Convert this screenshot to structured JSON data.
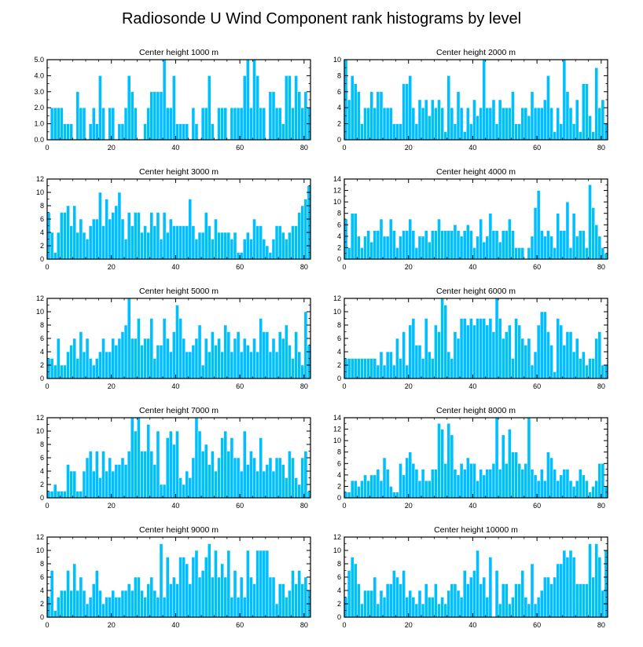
{
  "page": {
    "title": "Radiosonde U Wind Component rank histograms by level"
  },
  "colors": {
    "bar": "#00BFFF",
    "bar_edge": "#ffffff",
    "frame": "#000000"
  },
  "chart_data": [
    {
      "type": "bar",
      "title": "Center height 1000 m",
      "xlim": [
        0,
        82
      ],
      "ylim": [
        0,
        5
      ],
      "xticks": [
        0,
        20,
        40,
        60,
        80
      ],
      "xtick_labels": [
        "0",
        "20",
        "40",
        "60",
        "80"
      ],
      "yticks": [
        0,
        1,
        2,
        3,
        4,
        5
      ],
      "ytick_labels": [
        "0.0",
        "1.0",
        "2.0",
        "3.0",
        "4.0",
        "5.0"
      ],
      "values": [
        0,
        2,
        2,
        2,
        2,
        1,
        1,
        1,
        0,
        3,
        2,
        2,
        0,
        1,
        2,
        1,
        4,
        2,
        0,
        2,
        2,
        0,
        1,
        1,
        2,
        4,
        3,
        2,
        0,
        0,
        1,
        2,
        3,
        3,
        3,
        3,
        5,
        2,
        2,
        4,
        1,
        1,
        1,
        1,
        0,
        2,
        1,
        0,
        2,
        2,
        4,
        1,
        0,
        2,
        2,
        2,
        0,
        2,
        2,
        2,
        2,
        4,
        5,
        2,
        5,
        4,
        2,
        2,
        0,
        3,
        3,
        2,
        2,
        1,
        4,
        4,
        2,
        4,
        3,
        2,
        3,
        2
      ]
    },
    {
      "type": "bar",
      "title": "Center height 2000 m",
      "xlim": [
        0,
        82
      ],
      "ylim": [
        0,
        10
      ],
      "xticks": [
        0,
        20,
        40,
        60,
        80
      ],
      "xtick_labels": [
        "0",
        "20",
        "40",
        "60",
        "80"
      ],
      "yticks": [
        0,
        2,
        4,
        6,
        8,
        10
      ],
      "ytick_labels": [
        "0",
        "2",
        "4",
        "6",
        "8",
        "10"
      ],
      "values": [
        10,
        5,
        8,
        7,
        6,
        2,
        4,
        4,
        6,
        4,
        6,
        6,
        4,
        4,
        4,
        2,
        2,
        2,
        7,
        7,
        8,
        4,
        2,
        5,
        4,
        5,
        3,
        5,
        4,
        5,
        4,
        1,
        8,
        4,
        2,
        6,
        4,
        1,
        4,
        2,
        5,
        3,
        4,
        10,
        4,
        4,
        5,
        2,
        5,
        4,
        4,
        4,
        6,
        2,
        2,
        4,
        4,
        3,
        6,
        4,
        4,
        4,
        5,
        8,
        4,
        1,
        4,
        2,
        10,
        6,
        4,
        2,
        5,
        1,
        7,
        7,
        3,
        1,
        9,
        4,
        5,
        2
      ]
    },
    {
      "type": "bar",
      "title": "Center height 3000 m",
      "xlim": [
        0,
        82
      ],
      "ylim": [
        0,
        12
      ],
      "xticks": [
        0,
        20,
        40,
        60,
        80
      ],
      "xtick_labels": [
        "0",
        "20",
        "40",
        "60",
        "80"
      ],
      "yticks": [
        0,
        2,
        4,
        6,
        8,
        10,
        12
      ],
      "ytick_labels": [
        "0",
        "2",
        "4",
        "6",
        "8",
        "10",
        "12"
      ],
      "values": [
        7,
        4,
        1,
        4,
        7,
        7,
        8,
        5,
        8,
        4,
        6,
        4,
        3,
        5,
        6,
        6,
        10,
        5,
        9,
        6,
        7,
        8,
        10,
        6,
        3,
        7,
        5,
        7,
        7,
        4,
        5,
        4,
        7,
        5,
        7,
        3,
        7,
        4,
        6,
        5,
        5,
        5,
        5,
        5,
        9,
        5,
        3,
        4,
        4,
        7,
        5,
        3,
        6,
        4,
        4,
        4,
        4,
        3,
        4,
        1,
        1,
        3,
        4,
        3,
        6,
        5,
        5,
        3,
        2,
        1,
        3,
        5,
        5,
        4,
        3,
        4,
        5,
        5,
        7,
        8,
        9,
        11
      ]
    },
    {
      "type": "bar",
      "title": "Center height 4000 m",
      "xlim": [
        0,
        82
      ],
      "ylim": [
        0,
        14
      ],
      "xticks": [
        0,
        20,
        40,
        60,
        80
      ],
      "xtick_labels": [
        "0",
        "20",
        "40",
        "60",
        "80"
      ],
      "yticks": [
        0,
        2,
        4,
        6,
        8,
        10,
        12,
        14
      ],
      "ytick_labels": [
        "0",
        "2",
        "4",
        "6",
        "8",
        "10",
        "12",
        "14"
      ],
      "values": [
        7,
        2,
        8,
        8,
        4,
        2,
        4,
        5,
        3,
        5,
        5,
        7,
        4,
        4,
        7,
        5,
        2,
        4,
        5,
        5,
        7,
        5,
        2,
        4,
        4,
        5,
        3,
        5,
        5,
        7,
        5,
        5,
        5,
        5,
        6,
        5,
        4,
        5,
        6,
        5,
        2,
        4,
        7,
        3,
        4,
        8,
        5,
        5,
        3,
        5,
        5,
        7,
        5,
        2,
        2,
        2,
        0,
        2,
        4,
        9,
        12,
        5,
        4,
        5,
        4,
        2,
        8,
        5,
        5,
        10,
        2,
        8,
        4,
        5,
        5,
        2,
        13,
        9,
        6,
        4,
        2,
        1
      ]
    },
    {
      "type": "bar",
      "title": "Center height 5000 m",
      "xlim": [
        0,
        82
      ],
      "ylim": [
        0,
        12
      ],
      "xticks": [
        0,
        20,
        40,
        60,
        80
      ],
      "xtick_labels": [
        "0",
        "20",
        "40",
        "60",
        "80"
      ],
      "yticks": [
        0,
        2,
        4,
        6,
        8,
        10,
        12
      ],
      "ytick_labels": [
        "0",
        "2",
        "4",
        "6",
        "8",
        "10",
        "12"
      ],
      "values": [
        3,
        3,
        2,
        6,
        2,
        2,
        4,
        5,
        6,
        3,
        7,
        4,
        6,
        3,
        2,
        3,
        4,
        6,
        4,
        4,
        6,
        5,
        6,
        7,
        8,
        12,
        6,
        6,
        9,
        5,
        6,
        6,
        9,
        3,
        5,
        5,
        9,
        6,
        4,
        7,
        11,
        9,
        6,
        4,
        4,
        5,
        6,
        8,
        2,
        6,
        4,
        7,
        5,
        6,
        4,
        8,
        7,
        4,
        6,
        7,
        4,
        6,
        5,
        4,
        6,
        4,
        9,
        7,
        7,
        4,
        6,
        4,
        7,
        6,
        8,
        5,
        3,
        7,
        4,
        2,
        10,
        5
      ]
    },
    {
      "type": "bar",
      "title": "Center height 6000 m",
      "xlim": [
        0,
        82
      ],
      "ylim": [
        0,
        12
      ],
      "xticks": [
        0,
        20,
        40,
        60,
        80
      ],
      "xtick_labels": [
        "0",
        "20",
        "40",
        "60",
        "80"
      ],
      "yticks": [
        0,
        2,
        4,
        6,
        8,
        10,
        12
      ],
      "ytick_labels": [
        "0",
        "2",
        "4",
        "6",
        "8",
        "10",
        "12"
      ],
      "values": [
        3,
        3,
        3,
        3,
        3,
        3,
        3,
        3,
        3,
        3,
        2,
        4,
        2,
        4,
        4,
        2,
        6,
        3,
        7,
        2,
        8,
        9,
        5,
        5,
        3,
        9,
        4,
        3,
        8,
        7,
        12,
        11,
        4,
        3,
        7,
        6,
        9,
        9,
        8,
        9,
        8,
        9,
        9,
        9,
        8,
        9,
        7,
        12,
        9,
        6,
        7,
        8,
        3,
        9,
        8,
        6,
        5,
        6,
        2,
        4,
        8,
        10,
        10,
        7,
        5,
        1,
        9,
        8,
        5,
        7,
        7,
        4,
        6,
        3,
        4,
        2,
        3,
        3,
        6,
        7,
        2,
        2
      ]
    },
    {
      "type": "bar",
      "title": "Center height 7000 m",
      "xlim": [
        0,
        82
      ],
      "ylim": [
        0,
        12
      ],
      "xticks": [
        0,
        20,
        40,
        60,
        80
      ],
      "xtick_labels": [
        "0",
        "20",
        "40",
        "60",
        "80"
      ],
      "yticks": [
        0,
        2,
        4,
        6,
        8,
        10,
        12
      ],
      "ytick_labels": [
        "0",
        "2",
        "4",
        "6",
        "8",
        "10",
        "12"
      ],
      "values": [
        1,
        1,
        2,
        1,
        1,
        1,
        5,
        4,
        4,
        1,
        1,
        4,
        6,
        7,
        4,
        7,
        3,
        7,
        4,
        6,
        4,
        5,
        5,
        6,
        5,
        7,
        12,
        10,
        12,
        7,
        7,
        11,
        7,
        5,
        10,
        2,
        2,
        9,
        10,
        8,
        10,
        3,
        2,
        4,
        3,
        6,
        12,
        10,
        7,
        8,
        5,
        7,
        4,
        6,
        9,
        10,
        7,
        9,
        6,
        6,
        4,
        10,
        5,
        7,
        6,
        4,
        9,
        4,
        5,
        6,
        4,
        6,
        6,
        5,
        3,
        7,
        6,
        3,
        2,
        6,
        7,
        1
      ]
    },
    {
      "type": "bar",
      "title": "Center height 8000 m",
      "xlim": [
        0,
        82
      ],
      "ylim": [
        0,
        14
      ],
      "xticks": [
        0,
        20,
        40,
        60,
        80
      ],
      "xtick_labels": [
        "0",
        "20",
        "40",
        "60",
        "80"
      ],
      "yticks": [
        0,
        2,
        4,
        6,
        8,
        10,
        12,
        14
      ],
      "ytick_labels": [
        "0",
        "2",
        "4",
        "6",
        "8",
        "10",
        "12",
        "14"
      ],
      "values": [
        1,
        1,
        3,
        3,
        2,
        3,
        4,
        3,
        4,
        4,
        5,
        3,
        7,
        5,
        2,
        1,
        1,
        6,
        4,
        7,
        8,
        6,
        5,
        3,
        5,
        3,
        3,
        5,
        5,
        13,
        12,
        6,
        13,
        11,
        5,
        4,
        6,
        5,
        7,
        6,
        6,
        3,
        5,
        4,
        5,
        5,
        6,
        14,
        5,
        11,
        6,
        12,
        8,
        8,
        6,
        5,
        6,
        14,
        5,
        4,
        3,
        5,
        3,
        8,
        7,
        5,
        3,
        4,
        5,
        5,
        3,
        2,
        3,
        5,
        4,
        3,
        1,
        2,
        3,
        6,
        6,
        2
      ]
    },
    {
      "type": "bar",
      "title": "Center height 9000 m",
      "xlim": [
        0,
        82
      ],
      "ylim": [
        0,
        12
      ],
      "xticks": [
        0,
        20,
        40,
        60,
        80
      ],
      "xtick_labels": [
        "0",
        "20",
        "40",
        "60",
        "80"
      ],
      "yticks": [
        0,
        2,
        4,
        6,
        8,
        10,
        12
      ],
      "ytick_labels": [
        "0",
        "2",
        "4",
        "6",
        "8",
        "10",
        "12"
      ],
      "values": [
        3,
        7,
        1,
        3,
        4,
        4,
        7,
        4,
        8,
        4,
        6,
        4,
        2,
        3,
        5,
        7,
        4,
        2,
        3,
        3,
        4,
        3,
        3,
        4,
        4,
        5,
        4,
        6,
        6,
        4,
        3,
        5,
        6,
        4,
        3,
        11,
        3,
        9,
        5,
        6,
        5,
        9,
        9,
        8,
        5,
        9,
        10,
        6,
        7,
        9,
        11,
        6,
        10,
        6,
        8,
        6,
        10,
        3,
        7,
        3,
        6,
        3,
        10,
        6,
        5,
        10,
        10,
        10,
        10,
        6,
        6,
        2,
        5,
        5,
        3,
        4,
        7,
        5,
        7,
        5,
        6,
        4
      ]
    },
    {
      "type": "bar",
      "title": "Center height 10000 m",
      "xlim": [
        0,
        82
      ],
      "ylim": [
        0,
        12
      ],
      "xticks": [
        0,
        20,
        40,
        60,
        80
      ],
      "xtick_labels": [
        "0",
        "20",
        "40",
        "60",
        "80"
      ],
      "yticks": [
        0,
        2,
        4,
        6,
        8,
        10,
        12
      ],
      "ytick_labels": [
        "0",
        "2",
        "4",
        "6",
        "8",
        "10",
        "12"
      ],
      "values": [
        3,
        7,
        9,
        8,
        5,
        2,
        4,
        4,
        4,
        6,
        2,
        4,
        3,
        5,
        5,
        7,
        6,
        5,
        7,
        3,
        4,
        3,
        2,
        4,
        2,
        5,
        3,
        3,
        5,
        2,
        3,
        2,
        4,
        5,
        5,
        4,
        3,
        7,
        5,
        6,
        7,
        10,
        5,
        6,
        3,
        9,
        0,
        7,
        2,
        5,
        5,
        2,
        3,
        5,
        5,
        7,
        3,
        2,
        8,
        2,
        3,
        4,
        6,
        6,
        5,
        6,
        8,
        8,
        10,
        9,
        10,
        9,
        5,
        5,
        5,
        5,
        11,
        6,
        11,
        9,
        4,
        10
      ]
    }
  ]
}
